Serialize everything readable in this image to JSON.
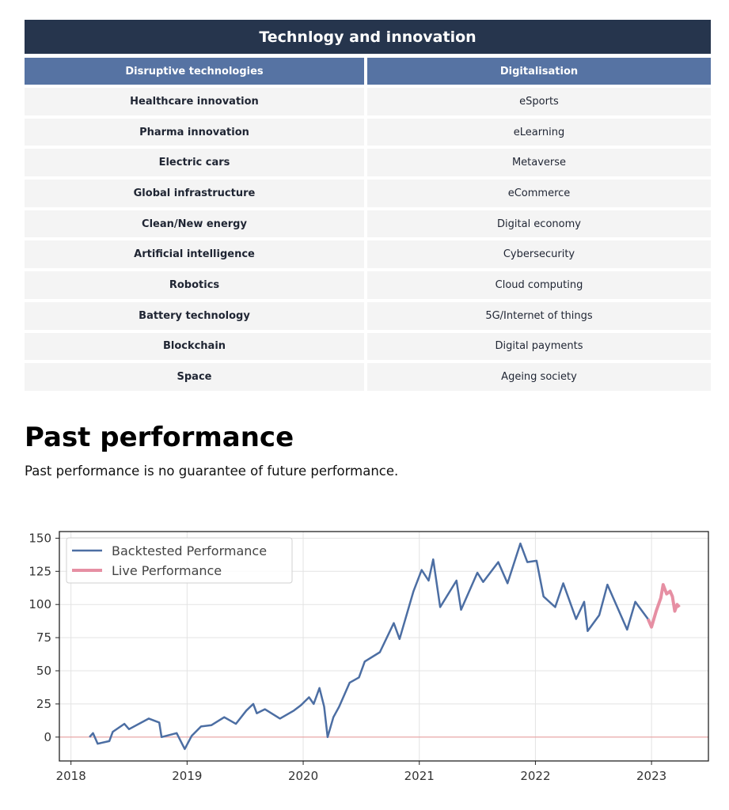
{
  "table": {
    "title": "Technlogy and innovation",
    "headers": [
      "Disruptive technologies",
      "Digitalisation"
    ],
    "rows": [
      [
        "Healthcare innovation",
        "eSports"
      ],
      [
        "Pharma innovation",
        "eLearning"
      ],
      [
        "Electric cars",
        "Metaverse"
      ],
      [
        "Global infrastructure",
        "eCommerce"
      ],
      [
        "Clean/New energy",
        "Digital economy"
      ],
      [
        "Artificial intelligence",
        "Cybersecurity"
      ],
      [
        "Robotics",
        "Cloud computing"
      ],
      [
        "Battery technology",
        "5G/Internet of things"
      ],
      [
        "Blockchain",
        "Digital payments"
      ],
      [
        "Space",
        "Ageing society"
      ]
    ],
    "colors": {
      "title_bg": "#26354d",
      "header_bg": "#5673a3",
      "cell_bg": "#f4f4f4"
    }
  },
  "section": {
    "title": "Past performance",
    "subtitle": "Past performance is no guarantee of future performance."
  },
  "chart_data": {
    "type": "line",
    "title": "",
    "xlabel": "",
    "ylabel": "",
    "xlim": [
      2017.9,
      2023.49
    ],
    "ylim": [
      -18,
      155
    ],
    "xticks": [
      2018,
      2019,
      2020,
      2021,
      2022,
      2023
    ],
    "xtick_labels": [
      "2018",
      "2019",
      "2020",
      "2021",
      "2022",
      "2023"
    ],
    "yticks": [
      0,
      25,
      50,
      75,
      100,
      125,
      150
    ],
    "ytick_labels": [
      "0",
      "25",
      "50",
      "75",
      "100",
      "125",
      "150"
    ],
    "grid": true,
    "reference_line": {
      "y": 0,
      "color": "#e8a0a0"
    },
    "legend": {
      "position": "top-left"
    },
    "series": [
      {
        "name": "Backtested Performance",
        "color": "#4c6ea3",
        "x": [
          2018.16,
          2018.19,
          2018.23,
          2018.33,
          2018.36,
          2018.46,
          2018.5,
          2018.67,
          2018.76,
          2018.78,
          2018.91,
          2018.98,
          2019.04,
          2019.12,
          2019.21,
          2019.32,
          2019.42,
          2019.51,
          2019.57,
          2019.6,
          2019.67,
          2019.8,
          2019.92,
          2019.98,
          2020.05,
          2020.09,
          2020.14,
          2020.18,
          2020.21,
          2020.26,
          2020.31,
          2020.4,
          2020.48,
          2020.53,
          2020.66,
          2020.78,
          2020.83,
          2020.95,
          2021.02,
          2021.08,
          2021.12,
          2021.18,
          2021.32,
          2021.36,
          2021.5,
          2021.55,
          2021.68,
          2021.76,
          2021.87,
          2021.93,
          2022.01,
          2022.07,
          2022.17,
          2022.24,
          2022.35,
          2022.42,
          2022.45,
          2022.55,
          2022.62,
          2022.79,
          2022.86,
          2022.97
        ],
        "y": [
          0,
          3,
          -5,
          -3,
          4,
          10,
          6,
          14,
          11,
          0,
          3,
          -9,
          1,
          8,
          9,
          15,
          10,
          20,
          25,
          18,
          21,
          14,
          20,
          24,
          30,
          25,
          37,
          23,
          0,
          15,
          23,
          41,
          45,
          57,
          64,
          86,
          74,
          110,
          126,
          118,
          134,
          98,
          118,
          96,
          124,
          117,
          132,
          116,
          146,
          132,
          133,
          106,
          98,
          116,
          89,
          102,
          80,
          92,
          115,
          81,
          102,
          89
        ]
      },
      {
        "name": "Live Performance",
        "color": "#e68fa3",
        "x": [
          2022.97,
          2023.0,
          2023.04,
          2023.08,
          2023.1,
          2023.13,
          2023.16,
          2023.18,
          2023.2,
          2023.22,
          2023.24
        ],
        "y": [
          89,
          83,
          95,
          105,
          115,
          108,
          110,
          106,
          95,
          100,
          98
        ]
      }
    ]
  }
}
